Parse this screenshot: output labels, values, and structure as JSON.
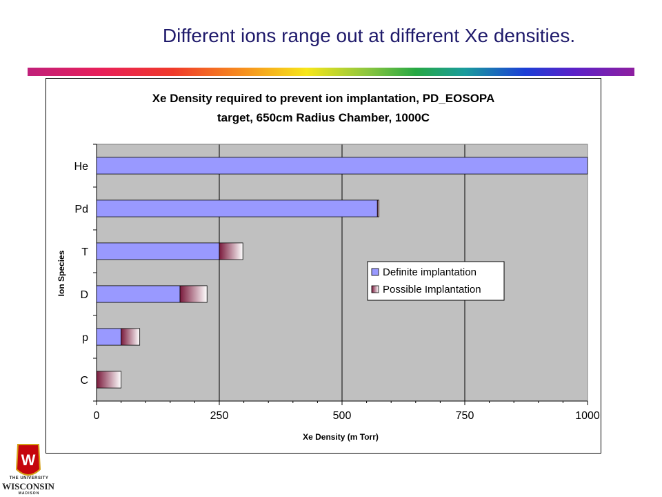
{
  "slide": {
    "title": "Different ions range out at different Xe densities."
  },
  "logo": {
    "line1": "THE UNIVERSITY",
    "line2": "WISCONSIN",
    "line3": "MADISON",
    "crest_letter": "W"
  },
  "chart_data": {
    "type": "bar",
    "orientation": "horizontal",
    "stacked": true,
    "title_line1": "Xe Density required to prevent ion implantation, PD_EOSOPA",
    "title_line2": "target, 650cm Radius Chamber, 1000C",
    "xlabel": "Xe Density (m Torr)",
    "ylabel": "Ion Species",
    "xlim": [
      0,
      1000
    ],
    "xticks": [
      0,
      250,
      500,
      750,
      1000
    ],
    "grid": true,
    "legend_position": "right",
    "categories": [
      "He",
      "Pd",
      "T",
      "D",
      "p",
      "C"
    ],
    "series": [
      {
        "name": "Definite implantation",
        "color": "#9999ff",
        "values": [
          1000,
          572,
          250,
          170,
          50,
          0
        ]
      },
      {
        "name": "Possible Implantation",
        "color": "#993366",
        "values": [
          0,
          3,
          48,
          55,
          38,
          50
        ]
      }
    ]
  }
}
